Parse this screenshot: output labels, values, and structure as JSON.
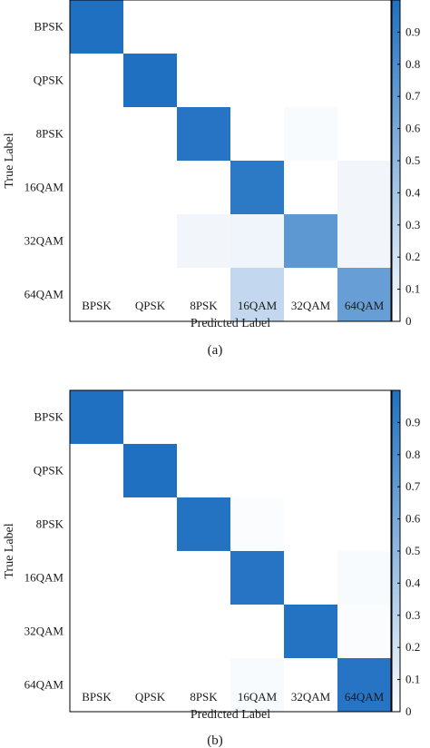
{
  "colors": {
    "high": "#1f70c1",
    "low": "#ffffff",
    "frame": "#000000"
  },
  "chart_data": [
    {
      "type": "heatmap",
      "caption": "(a)",
      "xlabel": "Predicted Label",
      "ylabel": "True Label",
      "x_categories": [
        "BPSK",
        "QPSK",
        "8PSK",
        "16QAM",
        "32QAM",
        "64QAM"
      ],
      "y_categories": [
        "BPSK",
        "QPSK",
        "8PSK",
        "16QAM",
        "32QAM",
        "64QAM"
      ],
      "values": [
        [
          1.0,
          0,
          0,
          0,
          0,
          0
        ],
        [
          0,
          1.0,
          0,
          0,
          0,
          0
        ],
        [
          0,
          0,
          0.97,
          0,
          0.03,
          0
        ],
        [
          0,
          0,
          0,
          0.94,
          0,
          0.06
        ],
        [
          0,
          0,
          0.06,
          0.07,
          0.72,
          0.06
        ],
        [
          0,
          0,
          0,
          0.27,
          0,
          0.68
        ]
      ],
      "colorbar": {
        "ticks": [
          "0",
          "0.1",
          "0.2",
          "0.3",
          "0.4",
          "0.5",
          "0.6",
          "0.7",
          "0.8",
          "0.9"
        ],
        "range": [
          0,
          1
        ]
      }
    },
    {
      "type": "heatmap",
      "caption": "(b)",
      "xlabel": "Predicted Label",
      "ylabel": "True Label",
      "x_categories": [
        "BPSK",
        "QPSK",
        "8PSK",
        "16QAM",
        "32QAM",
        "64QAM"
      ],
      "y_categories": [
        "BPSK",
        "QPSK",
        "8PSK",
        "16QAM",
        "32QAM",
        "64QAM"
      ],
      "values": [
        [
          1.0,
          0,
          0,
          0,
          0,
          0
        ],
        [
          0,
          1.0,
          0,
          0,
          0,
          0
        ],
        [
          0,
          0,
          0.98,
          0.02,
          0,
          0
        ],
        [
          0,
          0,
          0,
          0.97,
          0,
          0.03
        ],
        [
          0,
          0,
          0,
          0,
          0.98,
          0.02
        ],
        [
          0,
          0,
          0,
          0.03,
          0,
          0.97
        ]
      ],
      "colorbar": {
        "ticks": [
          "0",
          "0.1",
          "0.2",
          "0.3",
          "0.4",
          "0.5",
          "0.6",
          "0.7",
          "0.8",
          "0.9"
        ],
        "range": [
          0,
          1
        ]
      }
    }
  ]
}
